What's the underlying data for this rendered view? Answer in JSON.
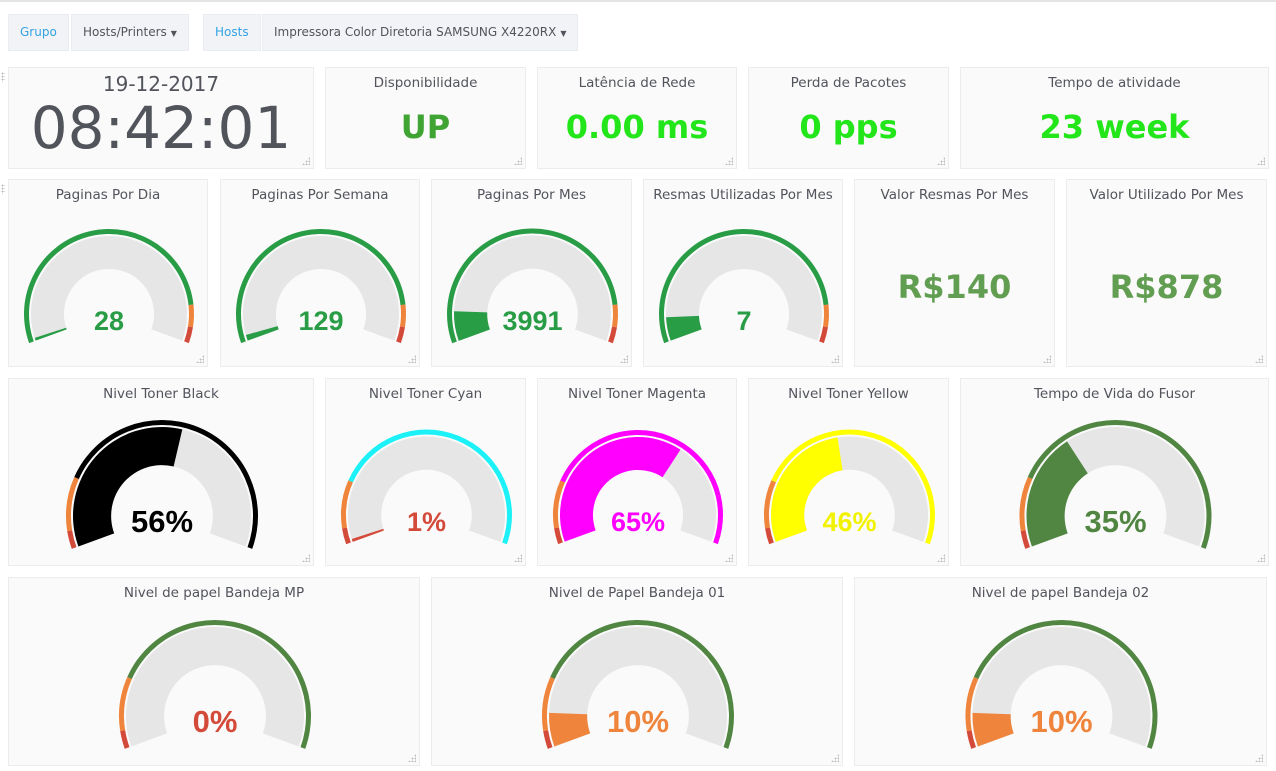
{
  "submenu": {
    "group_label": "Grupo",
    "group_value": "Hosts/Printers",
    "hosts_label": "Hosts",
    "hosts_value": "Impressora Color Diretoria SAMSUNG X4220RX"
  },
  "clock": {
    "date": "19-12-2017",
    "time": "08:42:01"
  },
  "stats": [
    {
      "title": "Disponibilidade",
      "value": "UP",
      "color": "#3fa434"
    },
    {
      "title": "Latência de Rede",
      "value": "0.00 ms",
      "color": "#22e51a"
    },
    {
      "title": "Perda de Pacotes",
      "value": "0 pps",
      "color": "#22e51a"
    },
    {
      "title": "Tempo de atividade",
      "value": "23 week",
      "color": "#22e51a"
    },
    {
      "title": "Valor Resmas Por Mes",
      "value": "R$140",
      "color": "#629e51"
    },
    {
      "title": "Valor Utilizado Por Mes",
      "value": "R$878",
      "color": "#629e51"
    }
  ],
  "gauges": [
    {
      "title": "Paginas Por Dia",
      "value": "28",
      "fill": 0.01,
      "color": "#299c46",
      "text_color": "#299c46",
      "thresholds": [
        {
          "to": 0.88,
          "color": "#299c46"
        },
        {
          "to": 0.95,
          "color": "#ef843c"
        },
        {
          "to": 1,
          "color": "#d44a3a"
        }
      ]
    },
    {
      "title": "Paginas Por Semana",
      "value": "129",
      "fill": 0.02,
      "color": "#299c46",
      "text_color": "#299c46",
      "thresholds": [
        {
          "to": 0.88,
          "color": "#299c46"
        },
        {
          "to": 0.95,
          "color": "#ef843c"
        },
        {
          "to": 1,
          "color": "#d44a3a"
        }
      ]
    },
    {
      "title": "Paginas Por Mes",
      "value": "3991",
      "fill": 0.1,
      "color": "#299c46",
      "text_color": "#299c46",
      "thresholds": [
        {
          "to": 0.88,
          "color": "#299c46"
        },
        {
          "to": 0.95,
          "color": "#ef843c"
        },
        {
          "to": 1,
          "color": "#d44a3a"
        }
      ]
    },
    {
      "title": "Resmas Utilizadas Por Mes",
      "value": "7",
      "fill": 0.08,
      "color": "#299c46",
      "text_color": "#299c46",
      "thresholds": [
        {
          "to": 0.88,
          "color": "#299c46"
        },
        {
          "to": 0.95,
          "color": "#ef843c"
        },
        {
          "to": 1,
          "color": "#d44a3a"
        }
      ]
    },
    {
      "title": "Nivel Toner Black",
      "value": "56%",
      "fill": 0.56,
      "color": "#000000",
      "text_color": "#000000",
      "thresholds": [
        {
          "to": 0.05,
          "color": "#d44a3a"
        },
        {
          "to": 0.2,
          "color": "#ef843c"
        },
        {
          "to": 1,
          "color": "#000000"
        }
      ]
    },
    {
      "title": "Nivel Toner Cyan",
      "value": "1%",
      "fill": 0.01,
      "color": "#d44a3a",
      "text_color": "#d44a3a",
      "thresholds": [
        {
          "to": 0.05,
          "color": "#d44a3a"
        },
        {
          "to": 0.2,
          "color": "#ef843c"
        },
        {
          "to": 1,
          "color": "#1cf1f7"
        }
      ]
    },
    {
      "title": "Nivel Toner Magenta",
      "value": "65%",
      "fill": 0.65,
      "color": "#ff00ff",
      "text_color": "#ff00ff",
      "thresholds": [
        {
          "to": 0.05,
          "color": "#d44a3a"
        },
        {
          "to": 0.2,
          "color": "#ef843c"
        },
        {
          "to": 1,
          "color": "#ff00ff"
        }
      ]
    },
    {
      "title": "Nivel Toner Yellow",
      "value": "46%",
      "fill": 0.46,
      "color": "#ffff00",
      "text_color": "#f2f200",
      "thresholds": [
        {
          "to": 0.05,
          "color": "#d44a3a"
        },
        {
          "to": 0.2,
          "color": "#ef843c"
        },
        {
          "to": 1,
          "color": "#ffff00"
        }
      ]
    },
    {
      "title": "Tempo de Vida do Fusor",
      "value": "35%",
      "fill": 0.35,
      "color": "#508642",
      "text_color": "#508642",
      "thresholds": [
        {
          "to": 0.05,
          "color": "#d44a3a"
        },
        {
          "to": 0.2,
          "color": "#ef843c"
        },
        {
          "to": 1,
          "color": "#508642"
        }
      ]
    },
    {
      "title": "Nivel de papel Bandeja MP",
      "value": "0%",
      "fill": 0,
      "color": "#d44a3a",
      "text_color": "#d44a3a",
      "thresholds": [
        {
          "to": 0.05,
          "color": "#d44a3a"
        },
        {
          "to": 0.2,
          "color": "#ef843c"
        },
        {
          "to": 1,
          "color": "#508642"
        }
      ]
    },
    {
      "title": "Nivel de Papel Bandeja 01",
      "value": "10%",
      "fill": 0.1,
      "color": "#ef843c",
      "text_color": "#ef843c",
      "thresholds": [
        {
          "to": 0.05,
          "color": "#d44a3a"
        },
        {
          "to": 0.2,
          "color": "#ef843c"
        },
        {
          "to": 1,
          "color": "#508642"
        }
      ]
    },
    {
      "title": "Nivel de papel Bandeja 02",
      "value": "10%",
      "fill": 0.1,
      "color": "#ef843c",
      "text_color": "#ef843c",
      "thresholds": [
        {
          "to": 0.05,
          "color": "#d44a3a"
        },
        {
          "to": 0.2,
          "color": "#ef843c"
        },
        {
          "to": 1,
          "color": "#508642"
        }
      ]
    }
  ]
}
